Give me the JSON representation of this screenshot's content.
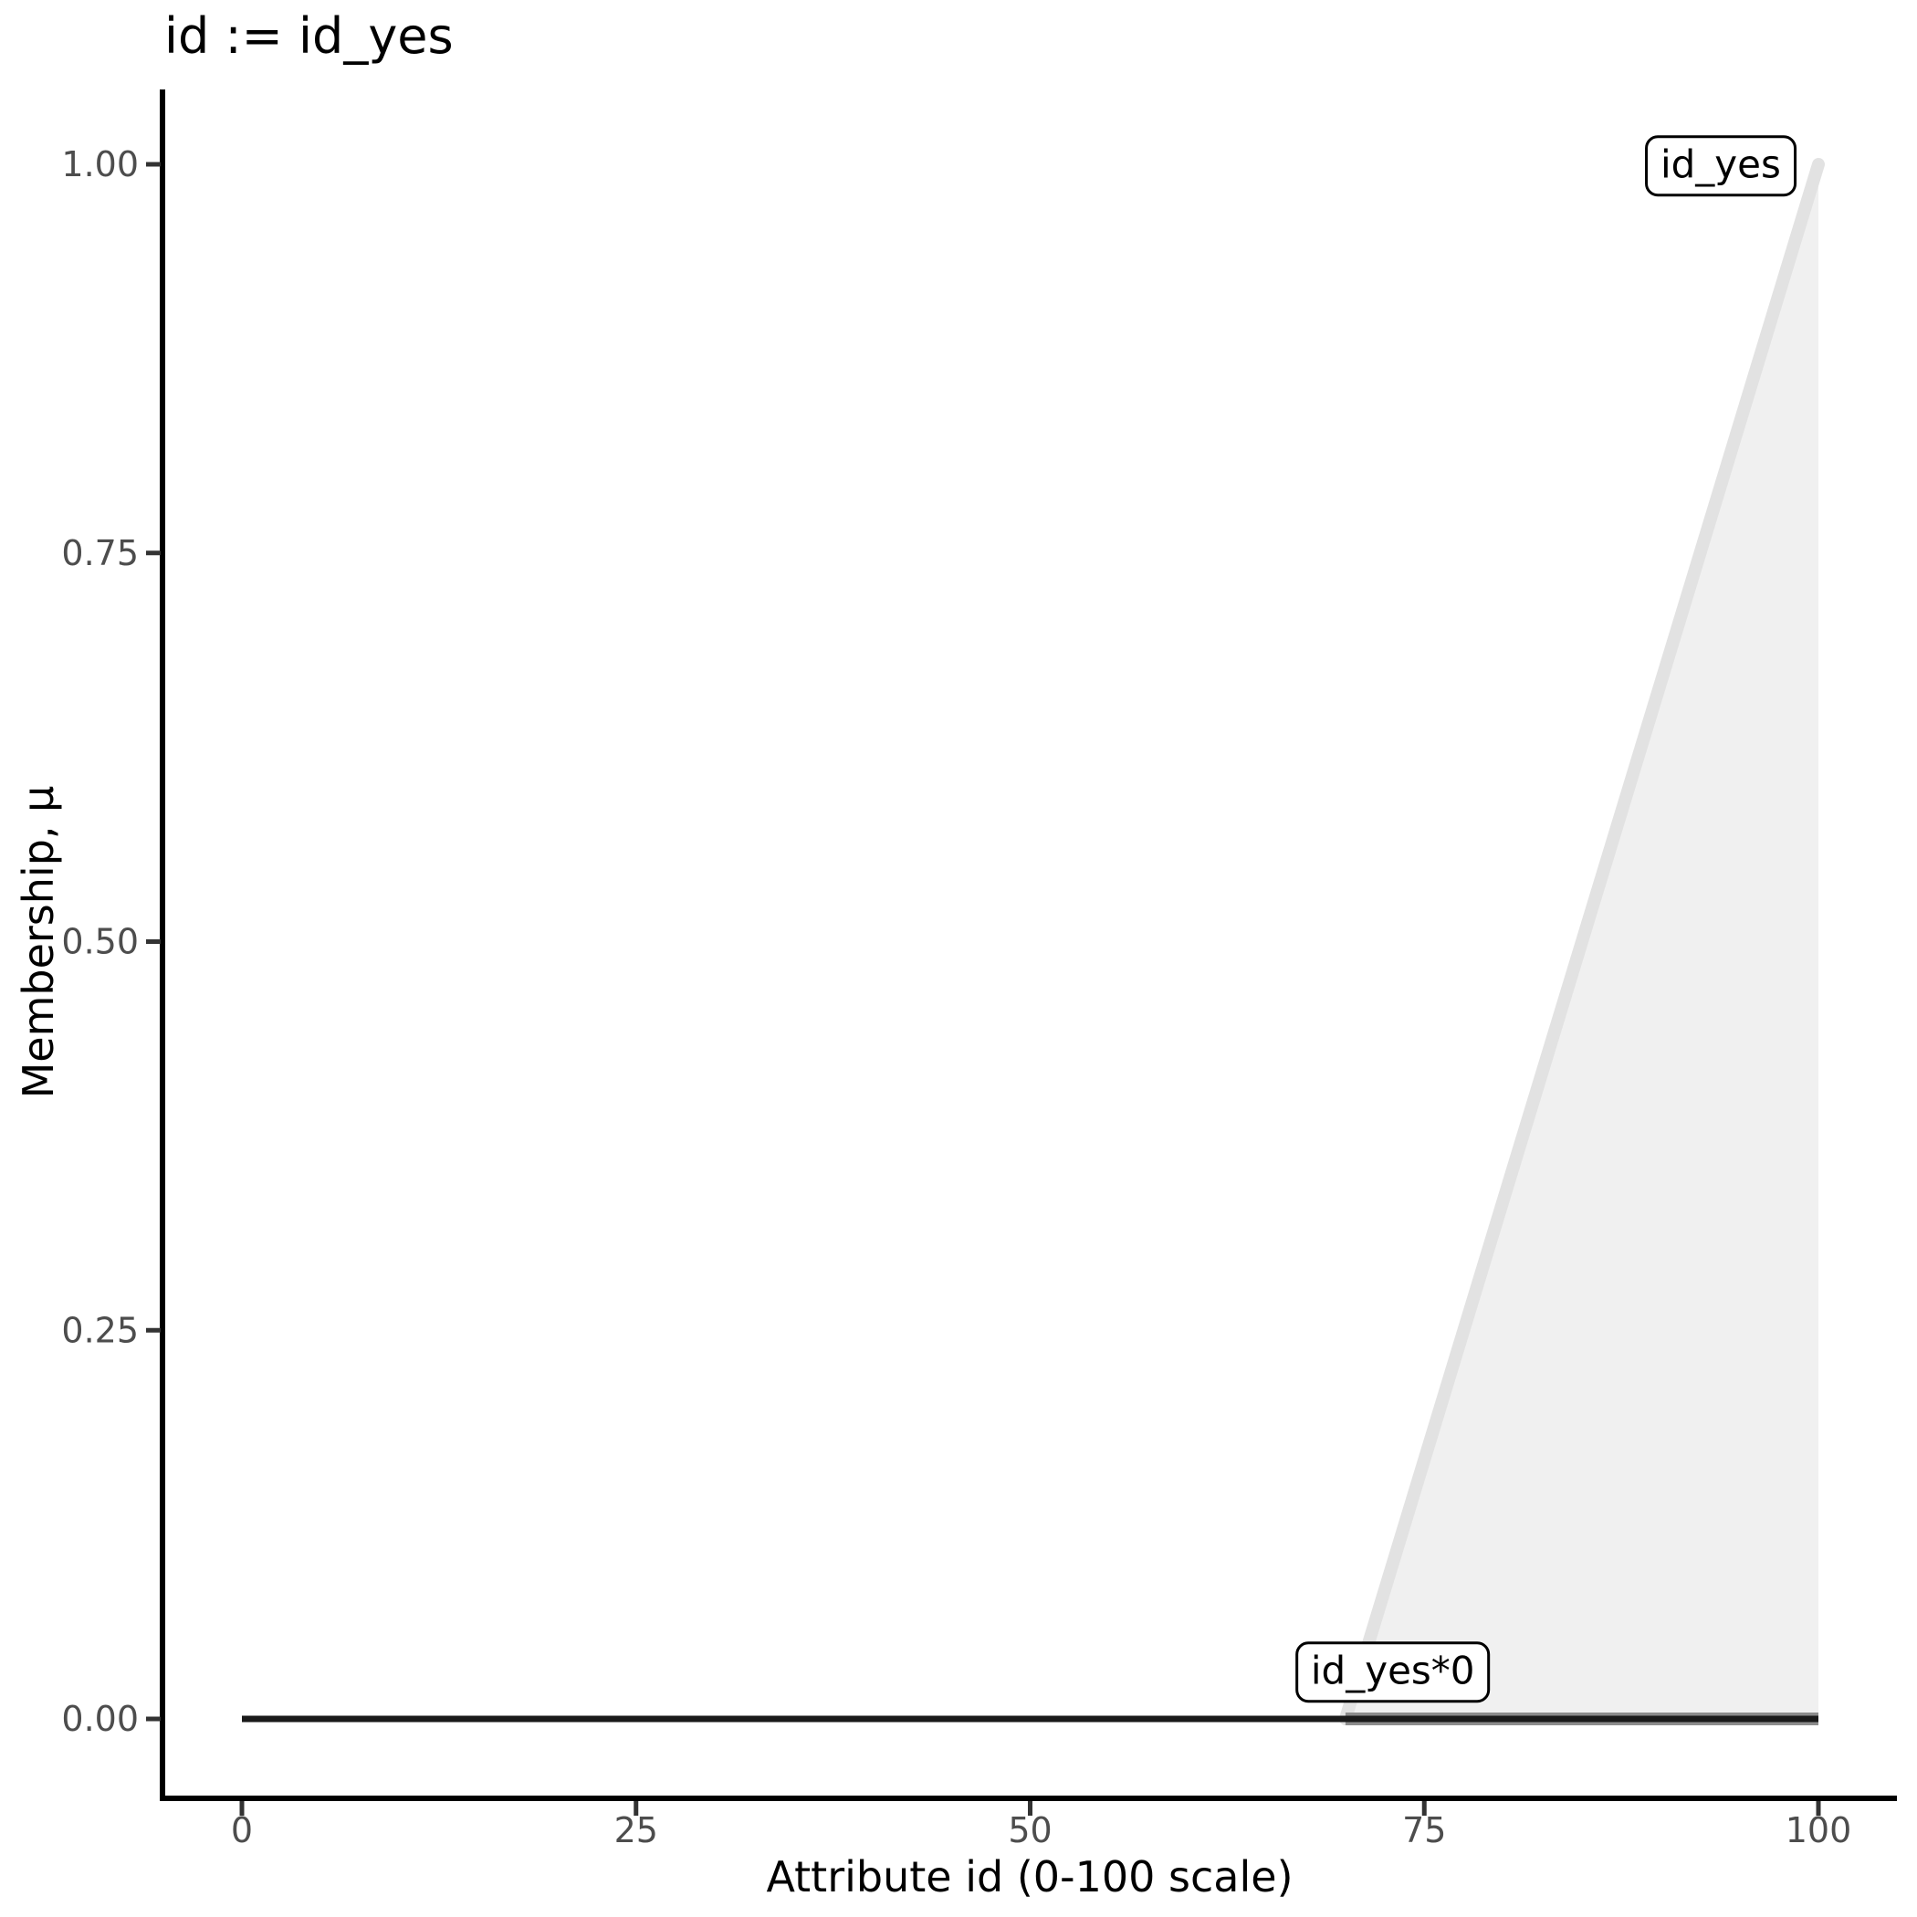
{
  "chart_data": {
    "type": "line",
    "title": "id := id_yes",
    "xlabel": "Attribute id (0-100 scale)",
    "ylabel": "Membership, μ",
    "xlim": [
      0,
      100
    ],
    "ylim": [
      0,
      1
    ],
    "grid": "off",
    "legend": "none",
    "xticks": {
      "values": [
        0,
        25,
        50,
        75,
        100
      ],
      "labels": [
        "0",
        "25",
        "50",
        "75",
        "100"
      ]
    },
    "yticks": {
      "values": [
        0,
        0.25,
        0.5,
        0.75,
        1
      ],
      "labels": [
        "0.00",
        "0.25",
        "0.50",
        "0.75",
        "1.00"
      ]
    },
    "series": [
      {
        "name": "id_yes",
        "description": "membership ramp of fuzzy set id_yes, rises linearly from 0 at x=70 to 1 at x=100",
        "x": [
          70,
          100
        ],
        "y": [
          0,
          1
        ],
        "line_color": "#e2e2e2",
        "line_width": 14,
        "linecap": "round",
        "fill_to_zero": true,
        "fill_color": "#f0f0f0",
        "label": "id_yes",
        "label_x": 93.8,
        "label_y": 0.999
      },
      {
        "name": "id_yes_times_0",
        "description": "id_yes*0: zero membership drawn thick over support [70,100]",
        "x": [
          70,
          100
        ],
        "y": [
          0,
          0
        ],
        "line_color": "#8c8c8c",
        "line_width": 14,
        "linecap": "butt",
        "fill_to_zero": false,
        "label": "id_yes*0",
        "label_x": 73,
        "label_y": 0.03
      },
      {
        "name": "zero_baseline",
        "description": "zero membership line across the whole universe [0,100]",
        "x": [
          0,
          100
        ],
        "y": [
          0,
          0
        ],
        "line_color": "#1a1a1a",
        "line_width": 7,
        "linecap": "butt",
        "fill_to_zero": false
      }
    ],
    "theme": {
      "background": "#ffffff",
      "axis_line_color": "#000000",
      "tick_color": "#333333",
      "tick_label_color": "#4d4d4d",
      "title_color": "#000000",
      "annotation_border_color": "#000000",
      "annotation_bg": "#ffffff"
    }
  }
}
